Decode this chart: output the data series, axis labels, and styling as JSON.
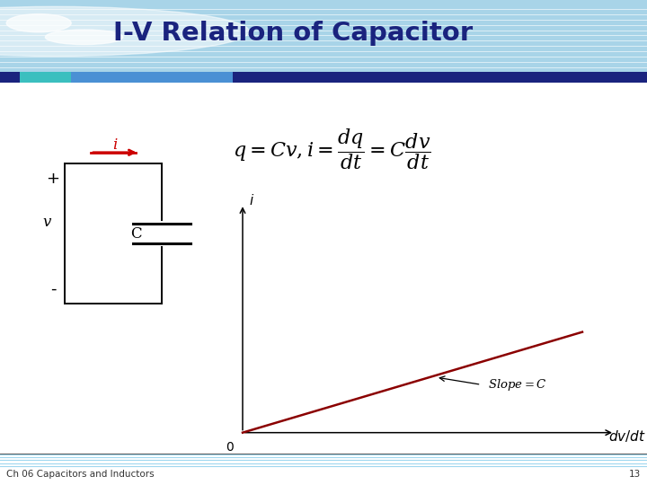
{
  "title": "I-V Relation of Capacitor",
  "title_color": "#1a237e",
  "header_bg_color": "#a8d4e8",
  "header_stripe_teal": "#3bbfbf",
  "header_stripe_blue": "#4a90d4",
  "dark_stripe_color": "#1a237e",
  "bg_color": "#ffffff",
  "footer_text": "Ch 06 Capacitors and Inductors",
  "footer_page": "13",
  "circuit_plus": "+",
  "circuit_minus": "-",
  "circuit_v": "v",
  "circuit_i": "i",
  "circuit_C": "C",
  "graph_xlabel": "$dv/dt$",
  "graph_ylabel": "$i$",
  "graph_origin_label": "0",
  "graph_slope_label": "Slope = $C$",
  "line_color": "#8b0000",
  "arrow_color": "#cc0000",
  "footer_line_colors": [
    "#87ceeb",
    "#87ceeb",
    "#87ceeb",
    "#87ceeb",
    "#87ceeb",
    "#87ceeb"
  ]
}
